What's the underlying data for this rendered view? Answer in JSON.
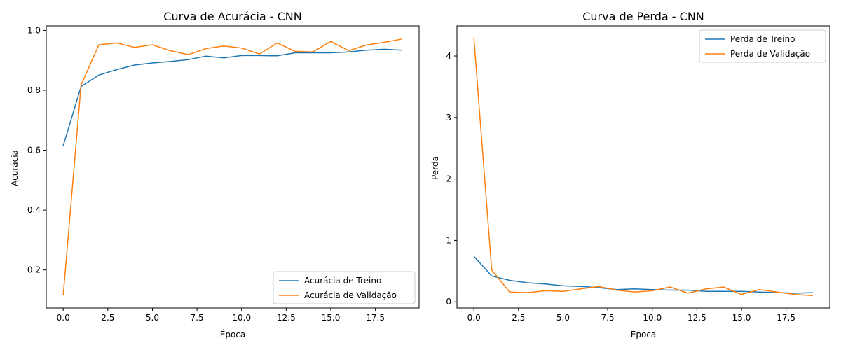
{
  "colors": {
    "train": "#1f77b4",
    "val": "#ff7f0e",
    "axis": "#000000",
    "legend_border": "#cccccc"
  },
  "chart_data": [
    {
      "type": "line",
      "title": "Curva de Acurácia - CNN",
      "xlabel": "Época",
      "ylabel": "Acurácia",
      "xlim": [
        -0.95,
        19.95
      ],
      "ylim": [
        0.073,
        1.015
      ],
      "xticks": [
        0.0,
        2.5,
        5.0,
        7.5,
        10.0,
        12.5,
        15.0,
        17.5
      ],
      "xtick_labels": [
        "0.0",
        "2.5",
        "5.0",
        "7.5",
        "10.0",
        "12.5",
        "15.0",
        "17.5"
      ],
      "yticks": [
        0.2,
        0.4,
        0.6,
        0.8,
        1.0
      ],
      "ytick_labels": [
        "0.2",
        "0.4",
        "0.6",
        "0.8",
        "1.0"
      ],
      "legend_position": "lower-right",
      "x": [
        0,
        1,
        2,
        3,
        4,
        5,
        6,
        7,
        8,
        9,
        10,
        11,
        12,
        13,
        14,
        15,
        16,
        17,
        18,
        19
      ],
      "series": [
        {
          "name": "Acurácia de Treino",
          "color": "#1f77b4",
          "values": [
            0.615,
            0.812,
            0.851,
            0.869,
            0.884,
            0.891,
            0.896,
            0.902,
            0.914,
            0.908,
            0.916,
            0.916,
            0.915,
            0.925,
            0.925,
            0.925,
            0.928,
            0.934,
            0.937,
            0.934
          ]
        },
        {
          "name": "Acurácia de Validação",
          "color": "#ff7f0e",
          "values": [
            0.115,
            0.817,
            0.952,
            0.958,
            0.943,
            0.952,
            0.932,
            0.919,
            0.939,
            0.948,
            0.941,
            0.921,
            0.958,
            0.93,
            0.928,
            0.963,
            0.932,
            0.951,
            0.96,
            0.971
          ]
        }
      ]
    },
    {
      "type": "line",
      "title": "Curva de Perda - CNN",
      "xlabel": "Época",
      "ylabel": "Perda",
      "xlim": [
        -0.95,
        19.95
      ],
      "ylim": [
        -0.1,
        4.49
      ],
      "xticks": [
        0.0,
        2.5,
        5.0,
        7.5,
        10.0,
        12.5,
        15.0,
        17.5
      ],
      "xtick_labels": [
        "0.0",
        "2.5",
        "5.0",
        "7.5",
        "10.0",
        "12.5",
        "15.0",
        "17.5"
      ],
      "yticks": [
        0,
        1,
        2,
        3,
        4
      ],
      "ytick_labels": [
        "0",
        "1",
        "2",
        "3",
        "4"
      ],
      "legend_position": "upper-right",
      "x": [
        0,
        1,
        2,
        3,
        4,
        5,
        6,
        7,
        8,
        9,
        10,
        11,
        12,
        13,
        14,
        15,
        16,
        17,
        18,
        19
      ],
      "series": [
        {
          "name": "Perda de Treino",
          "color": "#1f77b4",
          "values": [
            0.74,
            0.42,
            0.35,
            0.31,
            0.29,
            0.26,
            0.25,
            0.23,
            0.2,
            0.21,
            0.2,
            0.19,
            0.19,
            0.17,
            0.17,
            0.17,
            0.16,
            0.15,
            0.14,
            0.15
          ]
        },
        {
          "name": "Perda de Validação",
          "color": "#ff7f0e",
          "values": [
            4.29,
            0.52,
            0.16,
            0.15,
            0.18,
            0.17,
            0.21,
            0.25,
            0.19,
            0.16,
            0.18,
            0.24,
            0.14,
            0.21,
            0.24,
            0.12,
            0.2,
            0.16,
            0.12,
            0.1
          ]
        }
      ]
    }
  ]
}
